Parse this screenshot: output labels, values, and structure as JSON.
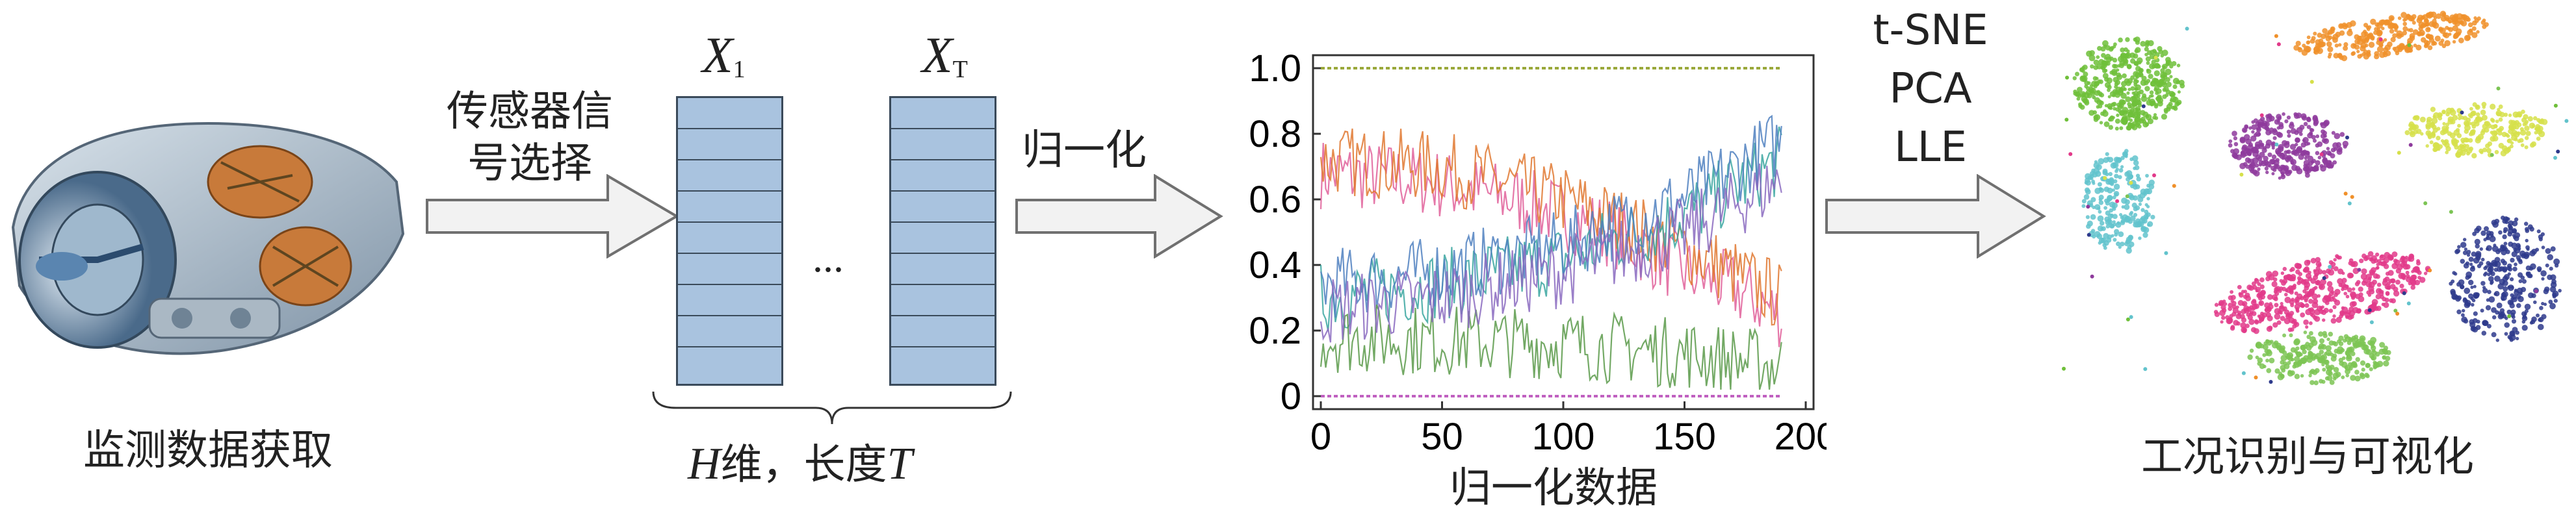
{
  "steps": {
    "acquire_label": "监测数据获取",
    "sensor_select_line1": "传感器信",
    "sensor_select_line2": "号选择",
    "matrix_first_var": "X",
    "matrix_first_sub": "1",
    "matrix_last_var": "X",
    "matrix_last_sub": "T",
    "ellipsis": "...",
    "matrix_dim_var": "H",
    "matrix_dim_mid": "维，长度",
    "matrix_dim_len": "T",
    "normalize_label": "归一化",
    "reduction_methods": [
      "t-SNE",
      "PCA",
      "LLE"
    ],
    "final_label": "工况识别与可视化"
  },
  "chart_data": {
    "type": "line",
    "xlabel": "归一化数据",
    "ylabel": "",
    "title": "",
    "xlim": [
      0,
      190
    ],
    "ylim": [
      0,
      1.0
    ],
    "xticks": [
      "0",
      "50",
      "100",
      "150",
      "200"
    ],
    "yticks": [
      "0",
      "0.2",
      "0.4",
      "0.6",
      "0.8",
      "1.0"
    ],
    "series": [
      {
        "color": "#9aa83a",
        "values": [
          [
            0,
            1.0
          ],
          [
            190,
            1.0
          ]
        ]
      },
      {
        "color": "#c060c0",
        "values": [
          [
            0,
            0.0
          ],
          [
            190,
            0.0
          ]
        ]
      },
      {
        "color": "#e0609a",
        "values": [
          [
            0,
            0.68
          ],
          [
            40,
            0.66
          ],
          [
            80,
            0.6
          ],
          [
            120,
            0.5
          ],
          [
            150,
            0.38
          ],
          [
            170,
            0.33
          ],
          [
            190,
            0.25
          ]
        ]
      },
      {
        "color": "#e07830",
        "values": [
          [
            0,
            0.72
          ],
          [
            50,
            0.7
          ],
          [
            100,
            0.6
          ],
          [
            150,
            0.45
          ],
          [
            190,
            0.3
          ]
        ]
      },
      {
        "color": "#3aa6a0",
        "values": [
          [
            0,
            0.3
          ],
          [
            50,
            0.34
          ],
          [
            100,
            0.42
          ],
          [
            150,
            0.55
          ],
          [
            190,
            0.72
          ]
        ]
      },
      {
        "color": "#4f80c0",
        "values": [
          [
            0,
            0.34
          ],
          [
            50,
            0.38
          ],
          [
            100,
            0.46
          ],
          [
            150,
            0.6
          ],
          [
            190,
            0.78
          ]
        ]
      },
      {
        "color": "#5a9a4a",
        "values": [
          [
            0,
            0.18
          ],
          [
            50,
            0.17
          ],
          [
            100,
            0.16
          ],
          [
            150,
            0.13
          ],
          [
            190,
            0.09
          ]
        ]
      },
      {
        "color": "#8a6ac0",
        "values": [
          [
            0,
            0.26
          ],
          [
            50,
            0.3
          ],
          [
            100,
            0.38
          ],
          [
            150,
            0.5
          ],
          [
            190,
            0.66
          ]
        ]
      }
    ]
  },
  "clusters": [
    {
      "color": "#6fbf3a"
    },
    {
      "color": "#f0902a"
    },
    {
      "color": "#62c3cc"
    },
    {
      "color": "#8e3a9c"
    },
    {
      "color": "#d6e04a"
    },
    {
      "color": "#e23a8a"
    },
    {
      "color": "#2e3a8c"
    },
    {
      "color": "#7cc454"
    }
  ]
}
